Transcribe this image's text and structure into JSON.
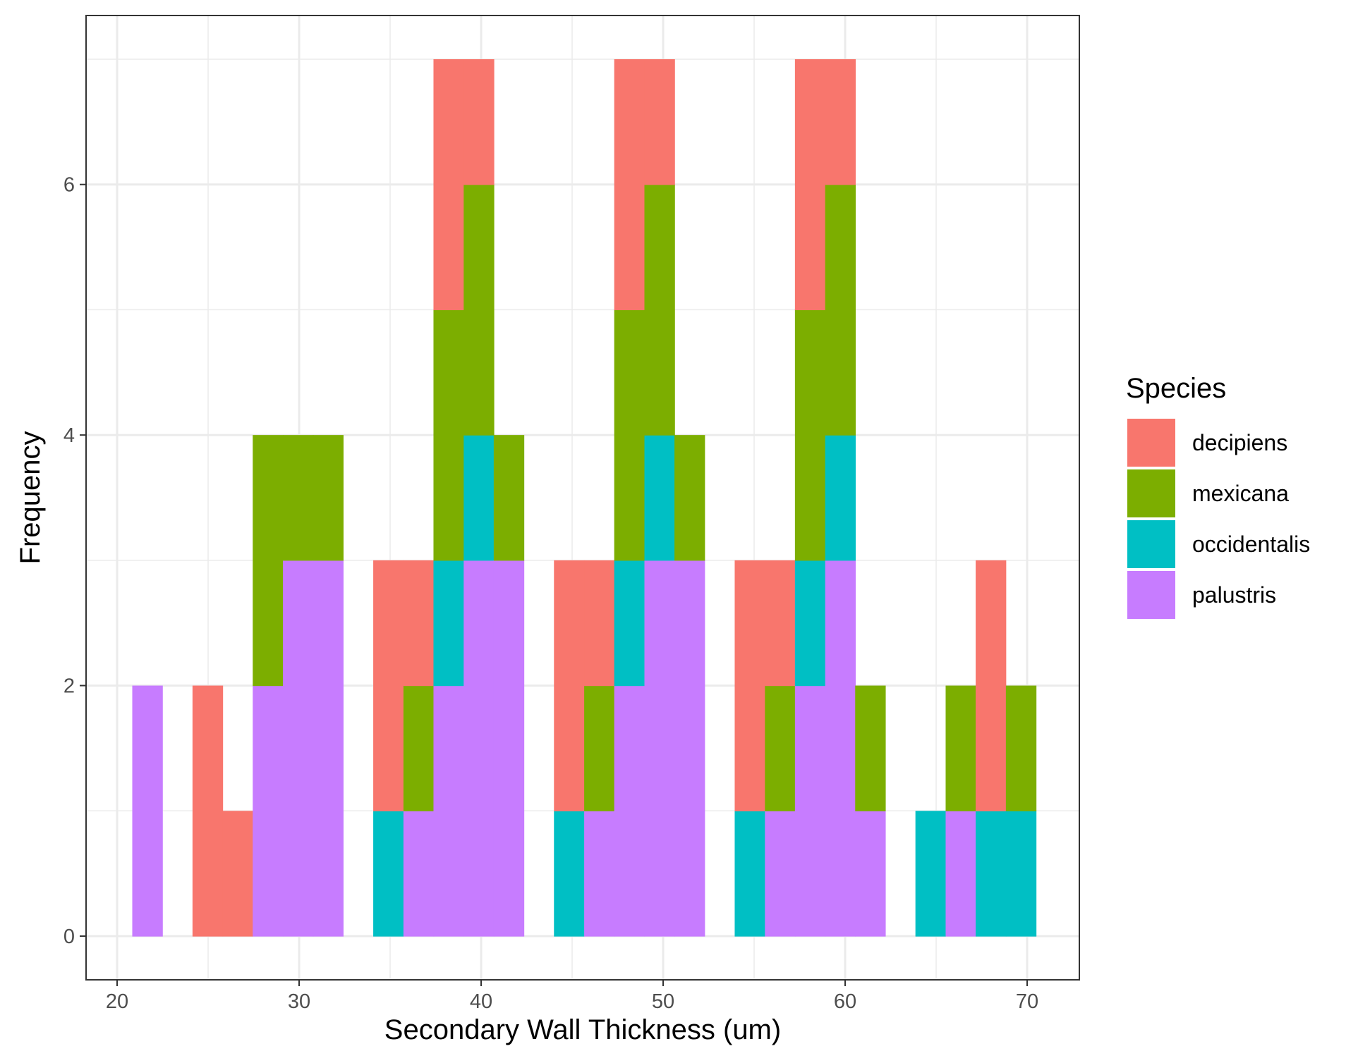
{
  "chart_data": {
    "type": "bar",
    "stacked": true,
    "xlabel": "Secondary Wall Thickness (um)",
    "ylabel": "Frequency",
    "xlim": [
      19.1,
      73.6
    ],
    "ylim": [
      0,
      7.35
    ],
    "x_ticks": [
      20,
      30,
      40,
      50,
      60,
      70
    ],
    "y_ticks": [
      0,
      2,
      4,
      6
    ],
    "grid": true,
    "legend": {
      "title": "Species",
      "position": "right"
    },
    "bin_width": 1.655,
    "bin_centers": [
      21.66,
      23.32,
      24.97,
      26.63,
      28.28,
      29.94,
      31.59,
      33.25,
      34.9,
      36.56,
      38.21,
      39.87,
      41.52,
      43.18,
      44.83,
      46.49,
      48.14,
      49.8,
      51.45,
      53.11,
      54.76,
      56.42,
      58.07,
      59.73,
      61.38,
      63.04,
      64.69,
      66.35,
      68.0,
      69.66
    ],
    "series": [
      {
        "name": "decipiens",
        "color": "#F8766D",
        "values": [
          0,
          0,
          2,
          1,
          0,
          0,
          0,
          0,
          2,
          1,
          2,
          1,
          0,
          0,
          2,
          1,
          2,
          1,
          0,
          0,
          2,
          1,
          2,
          1,
          0,
          0,
          0,
          0,
          2,
          0
        ]
      },
      {
        "name": "mexicana",
        "color": "#7CAE00",
        "values": [
          0,
          0,
          0,
          0,
          2,
          1,
          1,
          0,
          0,
          1,
          2,
          2,
          1,
          0,
          0,
          1,
          2,
          2,
          1,
          0,
          0,
          1,
          2,
          2,
          1,
          0,
          0,
          1,
          0,
          1
        ]
      },
      {
        "name": "occidentalis",
        "color": "#00BFC4",
        "values": [
          0,
          0,
          0,
          0,
          0,
          0,
          0,
          0,
          1,
          0,
          1,
          1,
          0,
          0,
          1,
          0,
          1,
          1,
          0,
          0,
          1,
          0,
          1,
          1,
          0,
          0,
          1,
          0,
          1,
          1
        ]
      },
      {
        "name": "palustris",
        "color": "#C77CFF",
        "values": [
          2,
          0,
          0,
          0,
          2,
          3,
          3,
          0,
          0,
          1,
          2,
          3,
          3,
          0,
          0,
          1,
          2,
          3,
          3,
          0,
          0,
          1,
          2,
          3,
          1,
          0,
          0,
          1,
          0,
          0
        ]
      }
    ]
  }
}
